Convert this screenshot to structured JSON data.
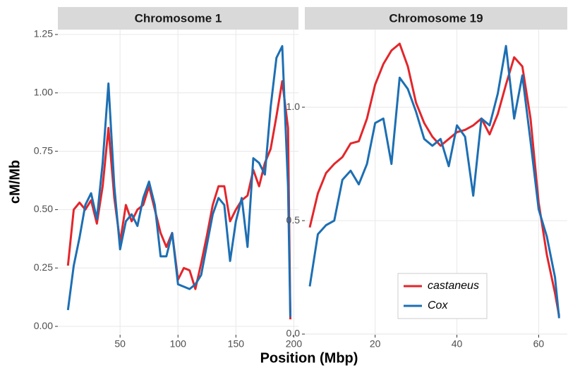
{
  "chart_data": [
    {
      "type": "line",
      "title": "Chromosome 1",
      "x": [
        5,
        10,
        15,
        20,
        25,
        30,
        35,
        40,
        45,
        50,
        55,
        60,
        65,
        70,
        75,
        80,
        85,
        90,
        95,
        100,
        105,
        110,
        115,
        120,
        125,
        130,
        135,
        140,
        145,
        150,
        155,
        160,
        165,
        170,
        175,
        180,
        185,
        190,
        195,
        197
      ],
      "series": [
        {
          "name": "castaneus",
          "color": "#e3262b",
          "values": [
            0.26,
            0.5,
            0.53,
            0.5,
            0.54,
            0.44,
            0.6,
            0.85,
            0.55,
            0.36,
            0.52,
            0.45,
            0.5,
            0.52,
            0.6,
            0.5,
            0.4,
            0.34,
            0.4,
            0.2,
            0.25,
            0.24,
            0.16,
            0.27,
            0.39,
            0.52,
            0.6,
            0.6,
            0.45,
            0.5,
            0.54,
            0.56,
            0.67,
            0.6,
            0.7,
            0.76,
            0.9,
            1.05,
            0.85,
            0.03
          ]
        },
        {
          "name": "Cox",
          "color": "#1d6fb3",
          "values": [
            0.07,
            0.26,
            0.38,
            0.52,
            0.57,
            0.46,
            0.7,
            1.04,
            0.6,
            0.33,
            0.45,
            0.48,
            0.43,
            0.55,
            0.62,
            0.52,
            0.3,
            0.3,
            0.4,
            0.18,
            0.17,
            0.16,
            0.18,
            0.22,
            0.35,
            0.48,
            0.55,
            0.52,
            0.28,
            0.45,
            0.55,
            0.34,
            0.72,
            0.7,
            0.65,
            0.94,
            1.15,
            1.2,
            0.6,
            0.04
          ]
        }
      ],
      "xlim": [
        -3.7,
        204
      ],
      "xticks": [
        50,
        100,
        150,
        200
      ],
      "ylim": [
        -0.036,
        1.271
      ],
      "yticks": [
        {
          "value": 0,
          "label": "0.00"
        },
        0.25,
        {
          "value": 0.5,
          "label": "0.50"
        },
        0.75,
        {
          "value": 1,
          "label": "1.00"
        },
        1.25
      ],
      "grid": true
    },
    {
      "type": "line",
      "title": "Chromosome 19",
      "x": [
        4,
        6,
        8,
        10,
        12,
        14,
        16,
        18,
        20,
        22,
        24,
        26,
        28,
        30,
        32,
        34,
        36,
        38,
        40,
        42,
        44,
        46,
        48,
        50,
        52,
        54,
        56,
        58,
        60,
        62,
        64,
        65
      ],
      "series": [
        {
          "name": "castaneus",
          "color": "#e3262b",
          "values": [
            0.47,
            0.62,
            0.71,
            0.75,
            0.78,
            0.84,
            0.85,
            0.95,
            1.1,
            1.19,
            1.25,
            1.28,
            1.18,
            1.02,
            0.93,
            0.87,
            0.83,
            0.86,
            0.89,
            0.9,
            0.92,
            0.95,
            0.88,
            0.97,
            1.1,
            1.22,
            1.18,
            0.95,
            0.58,
            0.35,
            0.18,
            0.08
          ]
        },
        {
          "name": "Cox",
          "color": "#1d6fb3",
          "values": [
            0.21,
            0.44,
            0.48,
            0.5,
            0.68,
            0.72,
            0.66,
            0.75,
            0.93,
            0.95,
            0.75,
            1.13,
            1.08,
            0.98,
            0.86,
            0.83,
            0.86,
            0.74,
            0.92,
            0.87,
            0.61,
            0.95,
            0.92,
            1.06,
            1.27,
            0.95,
            1.14,
            0.85,
            0.55,
            0.43,
            0.25,
            0.07
          ]
        }
      ],
      "xlim": [
        2.8,
        67
      ],
      "xticks": [
        20,
        40,
        60
      ],
      "ylim": [
        -0.003,
        1.342
      ],
      "yticks": [
        {
          "value": 0,
          "label": "0.0"
        },
        0.5,
        {
          "value": 1,
          "label": "1.0"
        }
      ],
      "grid": true,
      "legend": "bottom-left"
    }
  ],
  "y_label": "cM/Mb",
  "x_label": "Position (Mbp)"
}
